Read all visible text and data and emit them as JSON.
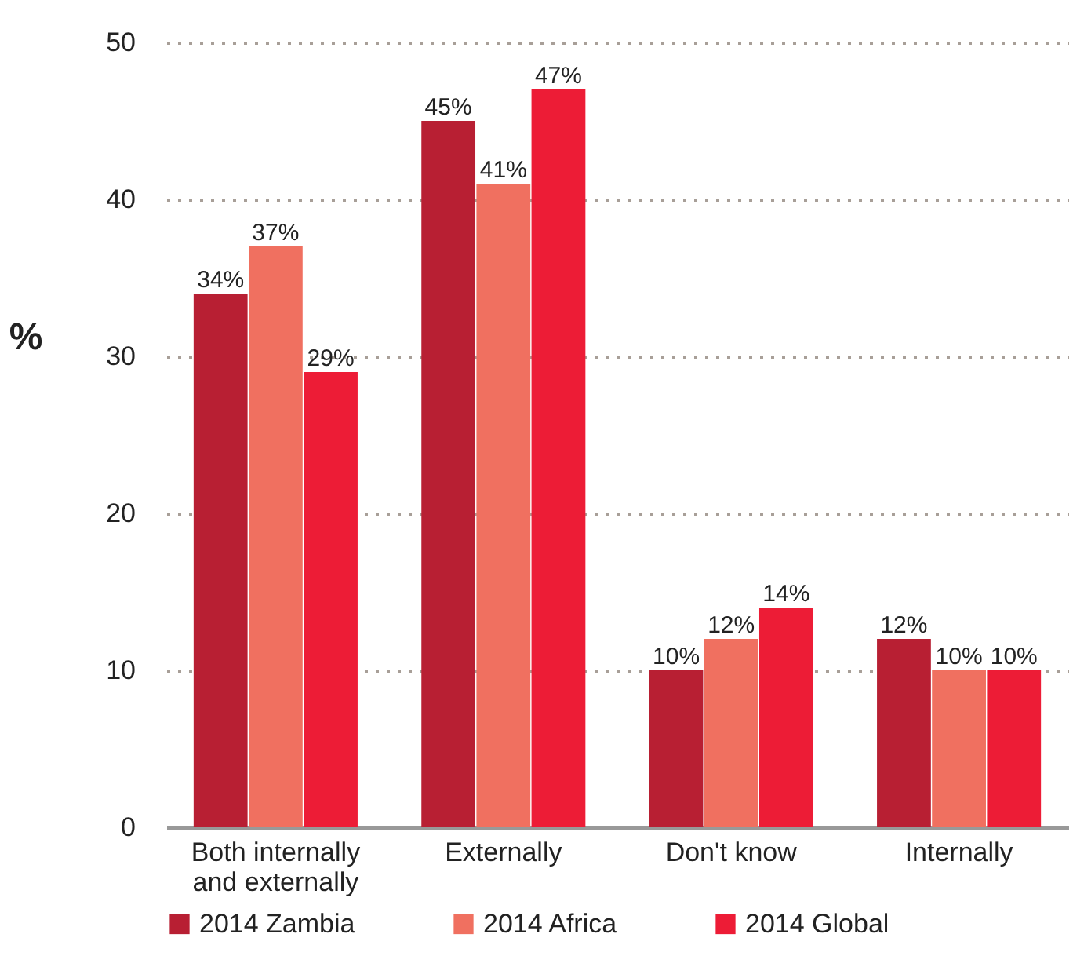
{
  "chart_data": {
    "type": "bar",
    "ylabel": "%",
    "categories": [
      "Both internally and externally",
      "Externally",
      "Don't know",
      "Internally"
    ],
    "series": [
      {
        "name": "2014 Zambia",
        "color": "#b81f33",
        "values": [
          34,
          45,
          10,
          12
        ],
        "value_labels": [
          "34%",
          "45%",
          "10%",
          "12%"
        ]
      },
      {
        "name": "2014 Africa",
        "color": "#f07060",
        "values": [
          37,
          41,
          12,
          10
        ],
        "value_labels": [
          "37%",
          "41%",
          "12%",
          "10%"
        ]
      },
      {
        "name": "2014 Global",
        "color": "#ed1c36",
        "values": [
          29,
          47,
          14,
          10
        ],
        "value_labels": [
          "29%",
          "47%",
          "14%",
          "10%"
        ]
      }
    ],
    "ylim": [
      0,
      50
    ],
    "yticks": [
      0,
      10,
      20,
      30,
      40,
      50
    ],
    "grid": "y",
    "legend": "bottom"
  }
}
